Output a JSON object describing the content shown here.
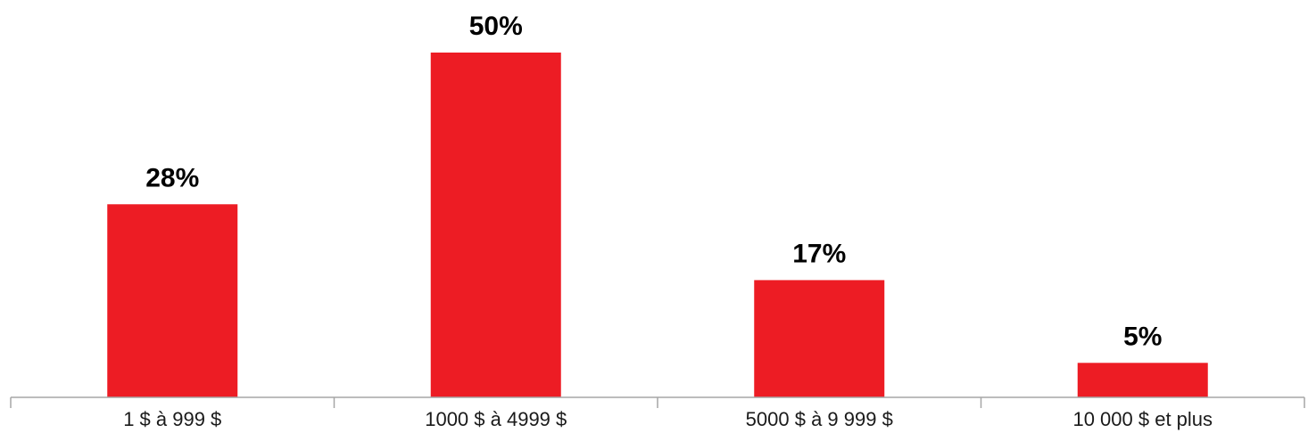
{
  "chart_data": {
    "type": "bar",
    "categories": [
      "1 $ à 999 $",
      "1000 $ à 4999 $",
      "5000 $ à 9 999 $",
      "10 000 $ et plus"
    ],
    "values": [
      28,
      50,
      17,
      5
    ],
    "data_labels": [
      "28%",
      "50%",
      "17%",
      "5%"
    ],
    "unit": "%",
    "ylim": [
      0,
      50
    ],
    "grid": false,
    "legend": "none",
    "bar_color": "#ED1C24",
    "axis_color": "#A6A6A6"
  }
}
